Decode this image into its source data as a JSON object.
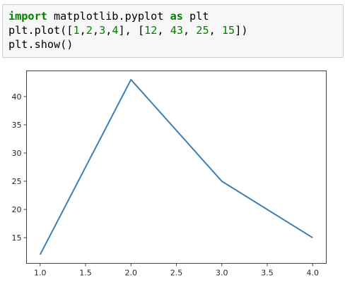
{
  "code_cell": {
    "lines": [
      [
        {
          "text": "import",
          "style": "kw"
        },
        {
          "text": " matplotlib.pyplot ",
          "style": "plain"
        },
        {
          "text": "as",
          "style": "kw"
        },
        {
          "text": " plt",
          "style": "plain"
        }
      ],
      [
        {
          "text": "plt.plot([",
          "style": "plain"
        },
        {
          "text": "1",
          "style": "num"
        },
        {
          "text": ",",
          "style": "plain"
        },
        {
          "text": "2",
          "style": "num"
        },
        {
          "text": ",",
          "style": "plain"
        },
        {
          "text": "3",
          "style": "num"
        },
        {
          "text": ",",
          "style": "plain"
        },
        {
          "text": "4",
          "style": "num"
        },
        {
          "text": "], [",
          "style": "plain"
        },
        {
          "text": "12",
          "style": "num"
        },
        {
          "text": ", ",
          "style": "plain"
        },
        {
          "text": "43",
          "style": "num"
        },
        {
          "text": ", ",
          "style": "plain"
        },
        {
          "text": "25",
          "style": "num"
        },
        {
          "text": ", ",
          "style": "plain"
        },
        {
          "text": "15",
          "style": "num"
        },
        {
          "text": "])",
          "style": "plain"
        }
      ],
      [
        {
          "text": "plt.show()",
          "style": "plain"
        }
      ]
    ]
  },
  "chart_data": {
    "type": "line",
    "title": "",
    "xlabel": "",
    "ylabel": "",
    "x": [
      1,
      2,
      3,
      4
    ],
    "series": [
      {
        "values": [
          12,
          43,
          25,
          15
        ],
        "color": "#3b7fb6"
      }
    ],
    "xlim": [
      0.85,
      4.15
    ],
    "ylim": [
      10.45,
      44.55
    ],
    "xticks": [
      1.0,
      1.5,
      2.0,
      2.5,
      3.0,
      3.5,
      4.0
    ],
    "xtick_labels": [
      "1.0",
      "1.5",
      "2.0",
      "2.5",
      "3.0",
      "3.5",
      "4.0"
    ],
    "yticks": [
      15,
      20,
      25,
      30,
      35,
      40
    ],
    "ytick_labels": [
      "15",
      "20",
      "25",
      "30",
      "35",
      "40"
    ],
    "grid": false,
    "legend": "none"
  }
}
